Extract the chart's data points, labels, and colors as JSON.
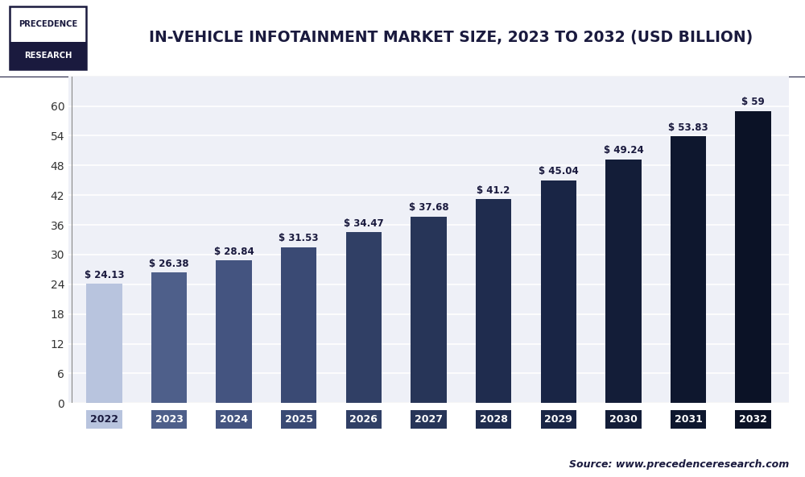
{
  "title": "IN-VEHICLE INFOTAINMENT MARKET SIZE, 2023 TO 2032 (USD BILLION)",
  "years": [
    "2022",
    "2023",
    "2024",
    "2025",
    "2026",
    "2027",
    "2028",
    "2029",
    "2030",
    "2031",
    "2032"
  ],
  "values": [
    24.13,
    26.38,
    28.84,
    31.53,
    34.47,
    37.68,
    41.2,
    45.04,
    49.24,
    53.83,
    59
  ],
  "labels": [
    "$ 24.13",
    "$ 26.38",
    "$ 28.84",
    "$ 31.53",
    "$ 34.47",
    "$ 37.68",
    "$ 41.2",
    "$ 45.04",
    "$ 49.24",
    "$ 53.83",
    "$ 59"
  ],
  "bar_colors": [
    "#b8c4de",
    "#4e5f8a",
    "#445480",
    "#3a4a74",
    "#303f65",
    "#273558",
    "#1f2c4e",
    "#192545",
    "#131d38",
    "#0e172e",
    "#0b1226"
  ],
  "tick_box_colors": [
    "#b8c4de",
    "#4e5f8a",
    "#445480",
    "#3a4a74",
    "#303f65",
    "#273558",
    "#1f2c4e",
    "#192545",
    "#131d38",
    "#0e172e",
    "#0b1226"
  ],
  "tick_label_colors": [
    "#1a1a3e",
    "#ffffff",
    "#ffffff",
    "#ffffff",
    "#ffffff",
    "#ffffff",
    "#ffffff",
    "#ffffff",
    "#ffffff",
    "#ffffff",
    "#ffffff"
  ],
  "ylim": [
    0,
    66
  ],
  "yticks": [
    0,
    6,
    12,
    18,
    24,
    30,
    36,
    42,
    48,
    54,
    60
  ],
  "background_color": "#ffffff",
  "plot_background": "#eef0f7",
  "grid_color": "#ffffff",
  "title_color": "#1a1a3e",
  "source_text": "Source: www.precedenceresearch.com",
  "logo_text_top": "PRECEDENCE",
  "logo_text_bottom": "RESEARCH",
  "header_bg": "#ffffff",
  "separator_color": "#1a1a3e",
  "bar_width": 0.55
}
